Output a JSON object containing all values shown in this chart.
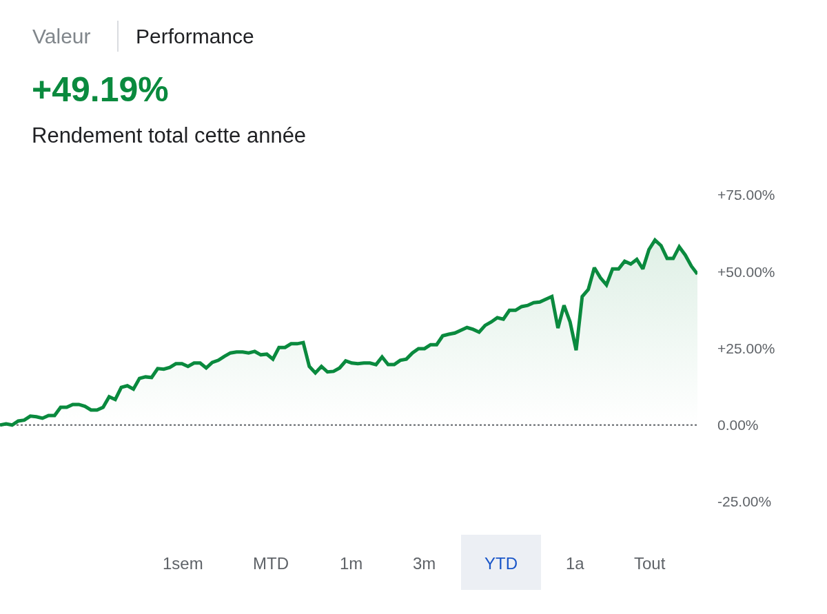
{
  "chart_data": {
    "type": "area",
    "title": "+49.19%",
    "subtitle": "Rendement total cette année",
    "annotations": [
      "Valeur",
      "Performance",
      "1sem",
      "MTD",
      "1m",
      "3m",
      "YTD",
      "1a",
      "Tout"
    ],
    "categories": [
      null,
      null,
      null,
      null,
      null,
      null,
      null,
      null,
      null,
      null,
      null,
      null,
      null,
      null,
      null,
      null,
      null,
      null,
      null,
      null,
      null,
      null,
      null,
      null,
      null,
      null,
      null,
      null,
      null,
      null,
      null,
      null,
      null,
      null,
      null,
      null,
      null,
      null,
      null,
      null,
      null,
      null,
      null,
      null,
      null,
      null,
      null,
      null,
      null,
      null,
      null,
      null,
      null,
      null,
      null,
      null,
      null,
      null,
      null,
      null,
      null,
      null,
      null,
      null,
      null,
      null,
      null,
      null,
      null,
      null,
      null,
      null,
      null,
      null,
      null,
      null,
      null,
      null,
      null,
      null,
      null,
      null,
      null,
      null,
      null,
      null,
      null,
      null,
      null,
      null,
      null,
      null,
      null,
      null,
      null,
      null,
      null,
      null,
      null,
      null,
      null,
      null,
      null,
      null,
      null,
      null,
      null,
      null,
      null,
      null,
      null,
      null,
      null,
      null,
      null,
      null
    ],
    "series": [
      {
        "color": "#0a8a3e",
        "values": [
          0,
          0.4,
          0,
          1.3,
          1.6,
          2.9,
          2.7,
          2.2,
          3.1,
          3.1,
          5.8,
          5.8,
          6.7,
          6.7,
          6.1,
          4.9,
          4.9,
          5.8,
          9.2,
          8.3,
          12.3,
          12.8,
          11.7,
          15.2,
          15.7,
          15.5,
          18.4,
          18.2,
          18.8,
          20.0,
          20.0,
          19.1,
          20.2,
          20.2,
          18.6,
          20.4,
          21.1,
          22.4,
          23.5,
          23.8,
          23.8,
          23.5,
          24.0,
          22.9,
          23.1,
          21.5,
          25.3,
          25.3,
          26.5,
          26.5,
          26.9,
          19.1,
          17.0,
          19.1,
          17.3,
          17.5,
          18.6,
          20.9,
          20.2,
          20.0,
          20.2,
          20.2,
          19.7,
          22.2,
          19.7,
          19.7,
          21.1,
          21.5,
          23.5,
          24.9,
          24.9,
          26.2,
          26.2,
          29.1,
          29.6,
          30.0,
          30.9,
          31.8,
          31.2,
          30.3,
          32.5,
          33.6,
          35.0,
          34.5,
          37.4,
          37.4,
          38.6,
          39.0,
          39.9,
          40.1,
          41.0,
          41.9,
          31.6,
          39.0,
          33.6,
          24.4,
          41.9,
          44.2,
          51.3,
          48.0,
          45.7,
          50.9,
          50.9,
          53.4,
          52.5,
          54.0,
          50.9,
          57.2,
          60.3,
          58.5,
          54.3,
          54.3,
          58.1,
          55.4,
          51.8,
          49.2
        ]
      }
    ],
    "ylim": [
      -25,
      75
    ],
    "yticks": [
      {
        "value": -25,
        "label": "-25.00%"
      },
      {
        "value": 0,
        "label": "0.00%"
      },
      {
        "value": 25,
        "label": "+25.00%"
      },
      {
        "value": 50,
        "label": "+50.00%"
      },
      {
        "value": 75,
        "label": "+75.00%"
      }
    ],
    "ref_lines": [
      {
        "axis": "y",
        "value": 0,
        "color": "#5f6368",
        "line_style": "dotted"
      }
    ],
    "tick_labels": "y",
    "grid": false,
    "marker": "none",
    "line_style": "solid"
  }
}
